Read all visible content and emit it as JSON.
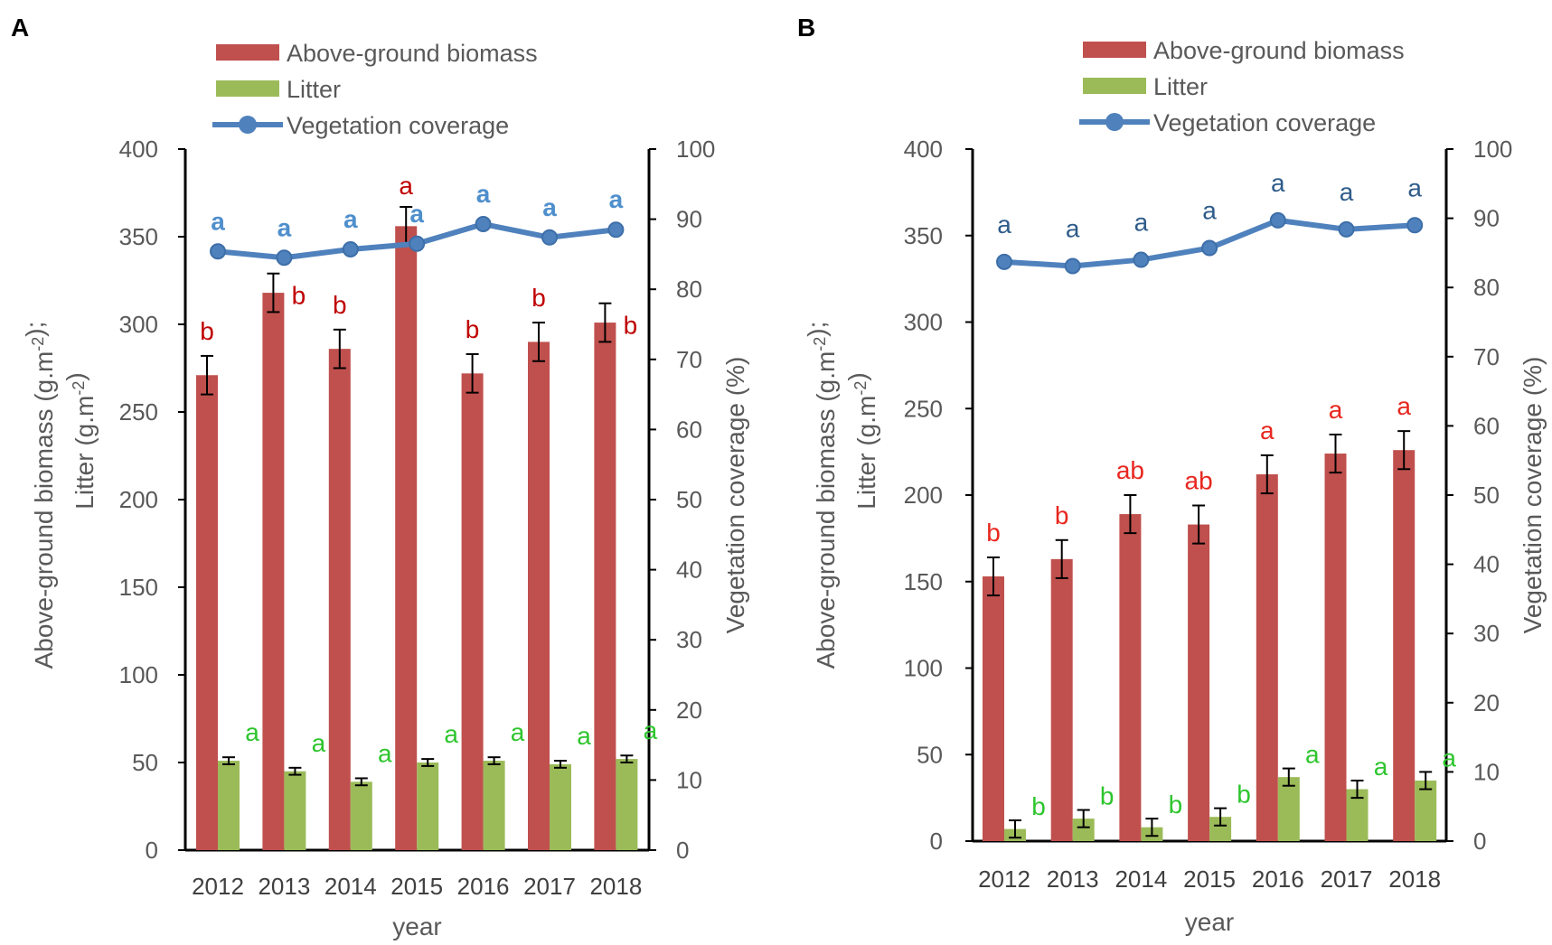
{
  "colors": {
    "biomass": "#c0504d",
    "litter": "#9bbb59",
    "coverage": "#4f81bd",
    "sig_biomass": "#c00000",
    "sig_biomass_b": "#e8271e",
    "sig_litter": "#2ec52e",
    "sig_cov_a": "#4f8fcc",
    "sig_cov_b": "#2f5c8a",
    "error_bar": "#000000"
  },
  "chart_data": [
    {
      "panel": "A",
      "type": "bar",
      "categories": [
        "2012",
        "2013",
        "2014",
        "2015",
        "2016",
        "2017",
        "2018"
      ],
      "xlabel": "year",
      "ylabel": [
        "Above-ground biomass (g.m-2);",
        "Litter (g.m-2)"
      ],
      "y2label": "Vegetation coverage (%)",
      "ylim": [
        0,
        400
      ],
      "yticks": [
        "0",
        "50",
        "100",
        "150",
        "200",
        "250",
        "300",
        "350",
        "400"
      ],
      "y2lim": [
        0,
        100
      ],
      "y2ticks": [
        "0",
        "10",
        "20",
        "30",
        "40",
        "50",
        "60",
        "70",
        "80",
        "90",
        "100"
      ],
      "legend": [
        "Above-ground biomass",
        "Litter",
        "Vegetation coverage"
      ],
      "series": [
        {
          "name": "Above-ground biomass",
          "type": "bar",
          "values": [
            271,
            318,
            286,
            356,
            272,
            290,
            301
          ],
          "errors": [
            11,
            11,
            11,
            11,
            11,
            11,
            11
          ],
          "letters": [
            "b",
            "b",
            "b",
            "a",
            "b",
            "b",
            "b"
          ]
        },
        {
          "name": "Litter",
          "type": "bar",
          "values": [
            51,
            45,
            39,
            50,
            51,
            49,
            52
          ],
          "errors": [
            2,
            2,
            2,
            2,
            2,
            2,
            2
          ],
          "letters": [
            "a",
            "a",
            "a",
            "a",
            "a",
            "a",
            "a"
          ]
        },
        {
          "name": "Vegetation coverage",
          "type": "line",
          "axis": "right",
          "values": [
            85.4,
            84.5,
            85.7,
            86.5,
            89.3,
            87.4,
            88.5
          ],
          "letters": [
            "a",
            "a",
            "a",
            "a",
            "a",
            "a",
            "a"
          ]
        }
      ]
    },
    {
      "panel": "B",
      "type": "bar",
      "categories": [
        "2012",
        "2013",
        "2014",
        "2015",
        "2016",
        "2017",
        "2018"
      ],
      "xlabel": "year",
      "ylabel": [
        "Above-ground biomass (g.m-2);",
        "Litter (g.m-2)"
      ],
      "y2label": "Vegetation coverage (%)",
      "ylim": [
        0,
        400
      ],
      "yticks": [
        "0",
        "50",
        "100",
        "150",
        "200",
        "250",
        "300",
        "350",
        "400"
      ],
      "y2lim": [
        0,
        100
      ],
      "y2ticks": [
        "0",
        "10",
        "20",
        "30",
        "40",
        "50",
        "60",
        "70",
        "80",
        "90",
        "100"
      ],
      "legend": [
        "Above-ground biomass",
        "Litter",
        "Vegetation coverage"
      ],
      "series": [
        {
          "name": "Above-ground biomass",
          "type": "bar",
          "values": [
            153,
            163,
            189,
            183,
            212,
            224,
            226
          ],
          "errors": [
            11,
            11,
            11,
            11,
            11,
            11,
            11
          ],
          "letters": [
            "b",
            "b",
            "ab",
            "ab",
            "a",
            "a",
            "a"
          ]
        },
        {
          "name": "Litter",
          "type": "bar",
          "values": [
            7,
            13,
            8,
            14,
            37,
            30,
            35
          ],
          "errors": [
            5,
            5,
            5,
            5,
            5,
            5,
            5
          ],
          "letters": [
            "b",
            "b",
            "b",
            "b",
            "a",
            "a",
            "a"
          ]
        },
        {
          "name": "Vegetation coverage",
          "type": "line",
          "axis": "right",
          "values": [
            83.7,
            83.1,
            84.0,
            85.7,
            89.7,
            88.4,
            89.0
          ],
          "letters": [
            "a",
            "a",
            "a",
            "a",
            "a",
            "a",
            "a"
          ]
        }
      ]
    }
  ]
}
